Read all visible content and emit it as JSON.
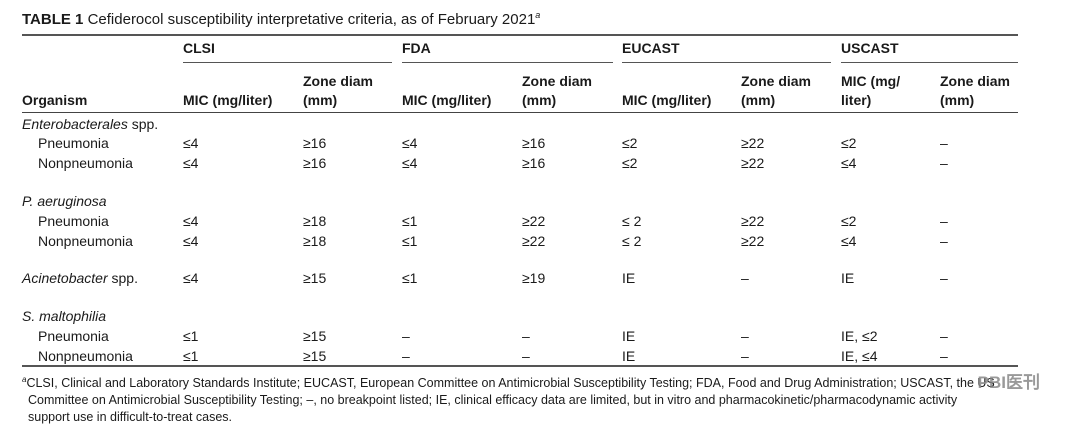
{
  "table": {
    "number": "TABLE 1",
    "title": "Cefiderocol susceptibility interpretative criteria, as of February 2021",
    "title_sup": "a",
    "groups": [
      "CLSI",
      "FDA",
      "EUCAST",
      "USCAST"
    ],
    "col_headers": {
      "organism": "Organism",
      "clsi_mic": "MIC (mg/liter)",
      "clsi_zone": "Zone diam (mm)",
      "fda_mic": "MIC (mg/liter)",
      "fda_zone": "Zone diam (mm)",
      "eucast_mic": "MIC (mg/liter)",
      "eucast_zone": "Zone diam (mm)",
      "uscast_mic": "MIC (mg/ liter)",
      "uscast_zone": "Zone diam (mm)"
    },
    "rows": [
      {
        "organism": "Enterobacterales",
        "suffix": " spp.",
        "heading": true
      },
      {
        "organism": "Pneumonia",
        "indent": true,
        "values": [
          "≤4",
          "≥16",
          "≤4",
          "≥16",
          "≤2",
          "≥22",
          "≤2",
          "–"
        ]
      },
      {
        "organism": "Nonpneumonia",
        "indent": true,
        "values": [
          "≤4",
          "≥16",
          "≤4",
          "≥16",
          "≤2",
          "≥22",
          "≤4",
          "–"
        ]
      },
      {
        "organism": "P. aeruginosa",
        "suffix": "",
        "heading": true
      },
      {
        "organism": "Pneumonia",
        "indent": true,
        "values": [
          "≤4",
          "≥18",
          "≤1",
          "≥22",
          "≤ 2",
          "≥22",
          "≤2",
          "–"
        ]
      },
      {
        "organism": "Nonpneumonia",
        "indent": true,
        "values": [
          "≤4",
          "≥18",
          "≤1",
          "≥22",
          "≤ 2",
          "≥22",
          "≤4",
          "–"
        ]
      },
      {
        "organism": "Acinetobacter",
        "suffix": " spp.",
        "values": [
          "≤4",
          "≥15",
          "≤1",
          "≥19",
          "IE",
          "–",
          "IE",
          "–"
        ]
      },
      {
        "organism": "S. maltophilia",
        "suffix": "",
        "heading": true
      },
      {
        "organism": "Pneumonia",
        "indent": true,
        "values": [
          "≤1",
          "≥15",
          "–",
          "–",
          "IE",
          "–",
          "IE, ≤2",
          "–"
        ]
      },
      {
        "organism": "Nonpneumonia",
        "indent": true,
        "values": [
          "≤1",
          "≥15",
          "–",
          "–",
          "IE",
          "–",
          "IE, ≤4",
          "–"
        ]
      }
    ],
    "footnote_mark": "a",
    "footnote": [
      "CLSI, Clinical and Laboratory Standards Institute; EUCAST, European Committee on Antimicrobial Susceptibility Testing; FDA, Food and Drug Administration; USCAST, the US",
      "Committee on Antimicrobial Susceptibility Testing; –, no breakpoint listed; IE, clinical efficacy data are limited, but in vitro and pharmacokinetic/pharmacodynamic activity",
      "support use in difficult-to-treat cases."
    ]
  },
  "watermark": "PBI医刊"
}
